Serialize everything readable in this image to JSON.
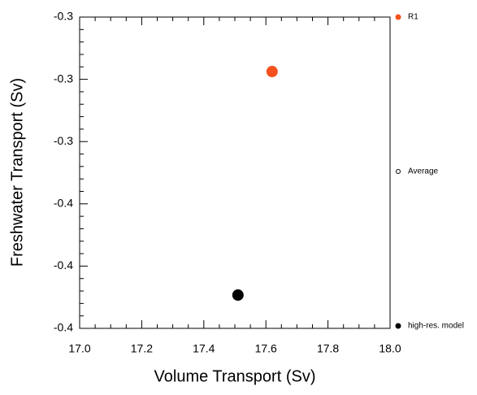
{
  "chart_data": {
    "type": "scatter",
    "xlabel": "Volume Transport (Sv)",
    "ylabel": "Freshwater Transport (Sv)",
    "xlim": [
      17.0,
      18.0
    ],
    "xticks": [
      {
        "value": 17.0,
        "label": "17.0"
      },
      17.2,
      17.4,
      17.6,
      17.8,
      {
        "value": 18.0,
        "label": "18.0"
      }
    ],
    "ylim": [
      -0.4,
      -0.3
    ],
    "yticks": [
      {
        "value": -0.4,
        "label": "-0.4"
      },
      {
        "value": -0.38,
        "label": "-0.4"
      },
      {
        "value": -0.36,
        "label": "-0.4"
      },
      {
        "value": -0.34,
        "label": "-0.3"
      },
      {
        "value": -0.32,
        "label": "-0.3"
      },
      {
        "value": -0.3,
        "label": "-0.3"
      }
    ],
    "series": [
      {
        "name": "R1",
        "color": "#f4511e",
        "x": [
          17.62
        ],
        "values": [
          -0.3175
        ]
      },
      {
        "name": "Average",
        "color": "#000000",
        "x": [],
        "values": []
      },
      {
        "name": "high-res. model",
        "color": "#000000",
        "x": [
          17.51
        ],
        "values": [
          -0.3893
        ]
      }
    ]
  }
}
